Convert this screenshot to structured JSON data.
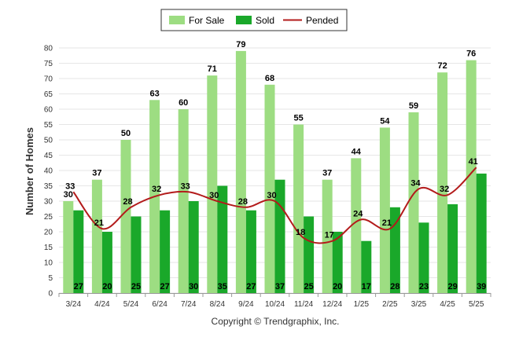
{
  "chart_data": {
    "type": "bar",
    "categories": [
      "3/24",
      "4/24",
      "5/24",
      "6/24",
      "7/24",
      "8/24",
      "9/24",
      "10/24",
      "11/24",
      "12/24",
      "1/25",
      "2/25",
      "3/25",
      "4/25",
      "5/25"
    ],
    "series": [
      {
        "name": "For Sale",
        "type": "bar",
        "color": "#9ddd82",
        "values": [
          30,
          37,
          50,
          63,
          60,
          71,
          79,
          68,
          55,
          37,
          44,
          54,
          59,
          72,
          76
        ]
      },
      {
        "name": "Sold",
        "type": "bar",
        "color": "#1aa82a",
        "values": [
          27,
          20,
          25,
          27,
          30,
          35,
          27,
          37,
          25,
          20,
          17,
          28,
          23,
          29,
          39
        ]
      },
      {
        "name": "Pended",
        "type": "line",
        "color": "#b31b1b",
        "values": [
          33,
          21,
          28,
          32,
          33,
          30,
          28,
          30,
          18,
          17,
          24,
          21,
          34,
          32,
          41
        ]
      }
    ],
    "ylabel": "Number of Homes",
    "ylim": [
      0,
      80
    ],
    "yticks": [
      0,
      5,
      10,
      15,
      20,
      25,
      30,
      35,
      40,
      45,
      50,
      55,
      60,
      65,
      70,
      75,
      80
    ],
    "grid": true,
    "legend_position": "top-center"
  },
  "credit": "Copyright © Trendgraphix, Inc."
}
